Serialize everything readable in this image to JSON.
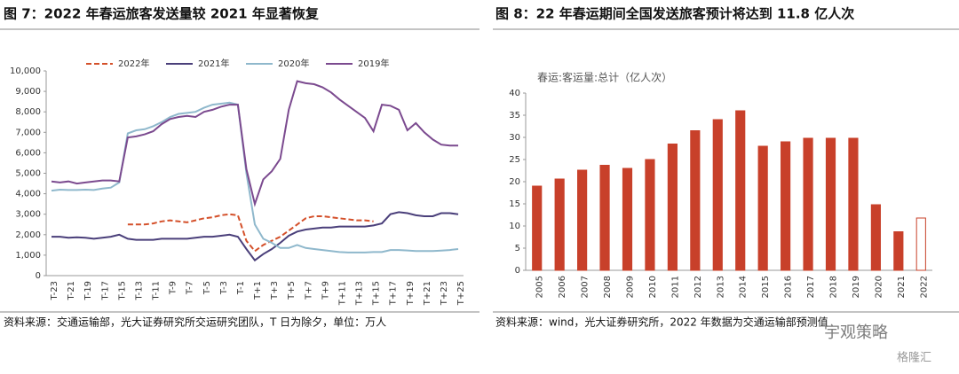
{
  "chart_data": [
    {
      "type": "line",
      "title": "图 7：2022 年春运旅客发送量较 2021 年显著恢复",
      "source": "资料来源：交通运输部，光大证券研究所交运研究团队，T 日为除夕，单位：万人",
      "categories": [
        "T-23",
        null,
        "T-21",
        null,
        "T-19",
        null,
        "T-17",
        null,
        "T-15",
        null,
        "T-13",
        null,
        "T-11",
        null,
        "T-9",
        null,
        "T-7",
        null,
        "T-5",
        null,
        "T-3",
        null,
        "T-1",
        null,
        "T+1",
        null,
        "T+3",
        null,
        "T+5",
        null,
        "T+7",
        null,
        "T+9",
        null,
        "T+11",
        null,
        "T+13",
        null,
        "T+15",
        null,
        "T+17",
        null,
        "T+19",
        null,
        "T+21",
        null,
        "T+23",
        null,
        "T+25"
      ],
      "series": [
        {
          "name": "2022年",
          "color": "#d4502a",
          "dashed": true,
          "values": [
            null,
            null,
            null,
            null,
            null,
            null,
            null,
            null,
            null,
            2500,
            2500,
            2500,
            2550,
            2650,
            2700,
            2650,
            2600,
            2700,
            2800,
            2850,
            2950,
            3000,
            2950,
            1700,
            1200,
            1500,
            1700,
            1900,
            2200,
            2500,
            2800,
            2900,
            2900,
            2850,
            2800,
            2750,
            2700,
            2700,
            2650,
            null,
            null,
            null,
            null,
            null,
            null,
            null,
            null,
            null,
            null
          ]
        },
        {
          "name": "2021年",
          "color": "#4a3f7a",
          "dashed": false,
          "values": [
            1900,
            1900,
            1850,
            1870,
            1850,
            1800,
            1850,
            1900,
            2000,
            1800,
            1750,
            1750,
            1750,
            1800,
            1800,
            1800,
            1800,
            1850,
            1900,
            1900,
            1950,
            2000,
            1900,
            1300,
            750,
            1050,
            1300,
            1600,
            1950,
            2150,
            2250,
            2300,
            2350,
            2350,
            2400,
            2400,
            2400,
            2400,
            2450,
            2550,
            3000,
            3100,
            3050,
            2950,
            2900,
            2900,
            3050,
            3050,
            3000
          ]
        },
        {
          "name": "2020年",
          "color": "#8fb8cc",
          "dashed": false,
          "values": [
            4150,
            4200,
            4180,
            4180,
            4200,
            4180,
            4250,
            4300,
            4550,
            6950,
            7100,
            7150,
            7300,
            7500,
            7750,
            7900,
            7950,
            8000,
            8200,
            8350,
            8400,
            8450,
            8350,
            5000,
            2500,
            1800,
            1600,
            1350,
            1350,
            1500,
            1350,
            1300,
            1250,
            1200,
            1150,
            1130,
            1130,
            1130,
            1150,
            1150,
            1250,
            1250,
            1230,
            1200,
            1200,
            1200,
            1220,
            1250,
            1300
          ]
        },
        {
          "name": "2019年",
          "color": "#7b4a8f",
          "dashed": false,
          "values": [
            4600,
            4550,
            4600,
            4500,
            4550,
            4600,
            4650,
            4650,
            4600,
            6750,
            6800,
            6900,
            7050,
            7400,
            7650,
            7750,
            7800,
            7750,
            8000,
            8100,
            8250,
            8350,
            8350,
            5200,
            3500,
            4700,
            5100,
            5700,
            8100,
            9500,
            9400,
            9350,
            9200,
            8950,
            8600,
            8300,
            8000,
            7700,
            7050,
            8350,
            8300,
            8100,
            7100,
            7450,
            7000,
            6650,
            6400,
            6350,
            6350
          ]
        }
      ],
      "ylim": [
        0,
        10000
      ],
      "yticks": [
        0,
        {
          "value": 1000,
          "label": "1,000"
        },
        {
          "value": 2000,
          "label": "2,000"
        },
        {
          "value": 3000,
          "label": "3,000"
        },
        {
          "value": 4000,
          "label": "4,000"
        },
        {
          "value": 5000,
          "label": "5,000"
        },
        {
          "value": 6000,
          "label": "6,000"
        },
        {
          "value": 7000,
          "label": "7,000"
        },
        {
          "value": 8000,
          "label": "8,000"
        },
        {
          "value": 9000,
          "label": "9,000"
        },
        {
          "value": 10000,
          "label": "10,000"
        }
      ],
      "grid": false,
      "legend": "top"
    },
    {
      "type": "bar",
      "title": "图 8：22 年春运期间全国发送旅客预计将达到 11.8 亿人次",
      "subtitle": "春运:客运量:总计（亿人次）",
      "source": "资料来源：wind，光大证券研究所，2022 年数据为交通运输部预测值",
      "categories": [
        "2005",
        "2006",
        "2007",
        "2008",
        "2009",
        "2010",
        "2011",
        "2012",
        "2013",
        "2014",
        "2015",
        "2016",
        "2017",
        "2018",
        "2019",
        "2020",
        "2021",
        "2022"
      ],
      "values": [
        19,
        20.6,
        22.6,
        23.7,
        23,
        25,
        28.5,
        31.5,
        34,
        36,
        28,
        29,
        29.8,
        29.8,
        29.8,
        14.8,
        8.7,
        11.8
      ],
      "colors": [
        "#c8402a",
        "#c8402a",
        "#c8402a",
        "#c8402a",
        "#c8402a",
        "#c8402a",
        "#c8402a",
        "#c8402a",
        "#c8402a",
        "#c8402a",
        "#c8402a",
        "#c8402a",
        "#c8402a",
        "#c8402a",
        "#c8402a",
        "#c8402a",
        "#c8402a",
        "#ffffff"
      ],
      "edge_color": "#c8402a",
      "ylim": [
        0,
        40
      ],
      "yticks": [
        0,
        5,
        10,
        15,
        20,
        25,
        30,
        35,
        40
      ],
      "grid": false
    }
  ],
  "watermark": [
    "宇观策略",
    "格隆汇"
  ]
}
